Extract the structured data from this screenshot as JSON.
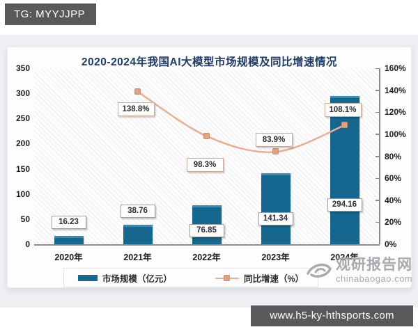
{
  "header_tag": {
    "label": "TG: MYYJJPP"
  },
  "footer_bar": {
    "url": "www.h5-ky-hthsports.com"
  },
  "watermark": {
    "name": "观研报告网",
    "domain": "chinabaogao.com"
  },
  "colors": {
    "bar": "#16678f",
    "bar_top": "#3a8bb0",
    "line": "#eaaf92",
    "marker": "#e3a17f",
    "title": "#1e3a66",
    "tag_bg": "#59595b"
  },
  "chart_data": {
    "type": "bar+line",
    "title": "2020-2024年我国AI大模型市场规模及同比增速情况",
    "categories": [
      "2020年",
      "2021年",
      "2022年",
      "2023年",
      "2024年"
    ],
    "series": [
      {
        "name": "市场规模（亿元）",
        "type": "bar",
        "axis": "left",
        "values": [
          16.23,
          38.76,
          76.85,
          141.34,
          294.16
        ],
        "labels": [
          "16.23",
          "38.76",
          "76.85",
          "141.34",
          "294.16"
        ],
        "color": "#16678f"
      },
      {
        "name": "同比增速（%）",
        "type": "line",
        "axis": "right",
        "values": [
          null,
          138.8,
          98.3,
          83.9,
          108.1
        ],
        "labels": [
          null,
          "138.8%",
          "98.3%",
          "83.9%",
          "108.1%"
        ],
        "label_dy": [
          0,
          25,
          41,
          -17,
          -22
        ],
        "color": "#eaaf92"
      }
    ],
    "left_axis": {
      "min": 0,
      "max": 350,
      "step": 50
    },
    "right_axis": {
      "min": 0,
      "max": 160,
      "step": 20,
      "suffix": "%"
    },
    "legend_position": "bottom",
    "grid": false,
    "plot_hatch": true
  }
}
